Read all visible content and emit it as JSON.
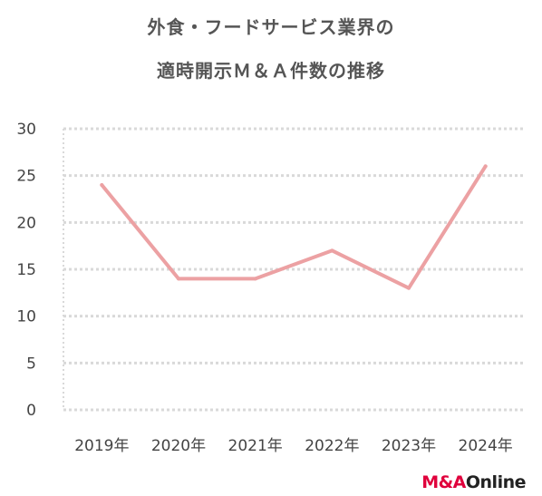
{
  "chart_data": {
    "type": "line",
    "title_lines": [
      "外食・フードサービス業界の",
      "適時開示Ｍ＆Ａ件数の推移"
    ],
    "categories": [
      "2019年",
      "2020年",
      "2021年",
      "2022年",
      "2023年",
      "2024年"
    ],
    "series": [
      {
        "values": [
          24,
          14,
          14,
          17,
          13,
          26
        ]
      }
    ],
    "yticks": [
      "0",
      "5",
      "10",
      "15",
      "20",
      "25",
      "30"
    ],
    "ylim": [
      0,
      30
    ],
    "grid": true,
    "line_color": "#eca1a3",
    "grid_color": "#d9d9d9"
  },
  "logo": {
    "brand": "M&A",
    "suffix": "Online"
  }
}
